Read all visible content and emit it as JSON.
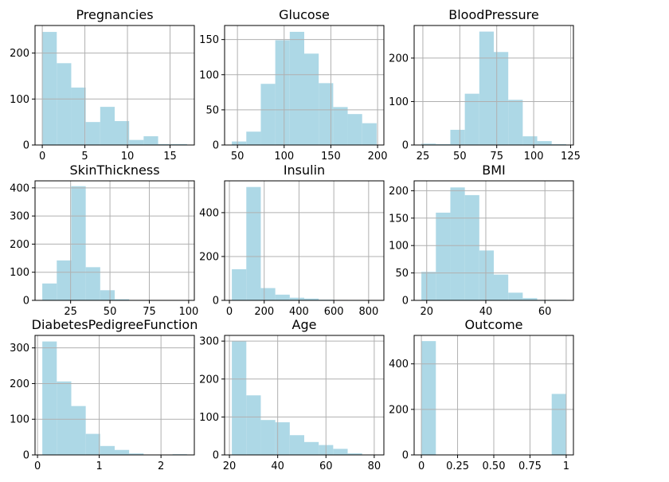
{
  "figure": {
    "bar_color": "#add8e6"
  },
  "chart_data": [
    {
      "type": "bar",
      "title": "Pregnancies",
      "bin_edges": [
        0,
        1.7,
        3.4,
        5.1,
        6.8,
        8.5,
        10.2,
        11.9,
        13.6,
        15.3,
        17
      ],
      "values": [
        246,
        178,
        125,
        50,
        83,
        52,
        11,
        19,
        2,
        2
      ],
      "xlim": [
        -0.85,
        17.85
      ],
      "ylim": [
        0,
        260
      ],
      "xticks": [
        0,
        5,
        10,
        15
      ],
      "yticks": [
        0,
        100,
        200
      ],
      "grid": true
    },
    {
      "type": "bar",
      "title": "Glucose",
      "bin_edges": [
        44,
        59.5,
        75,
        90.5,
        106,
        121.5,
        137,
        152.5,
        168,
        183.5,
        199
      ],
      "values": [
        5,
        19,
        87,
        149,
        161,
        130,
        88,
        54,
        44,
        31
      ],
      "xlim": [
        36.25,
        206.75
      ],
      "ylim": [
        0,
        170
      ],
      "xticks": [
        50,
        100,
        150,
        200
      ],
      "yticks": [
        0,
        50,
        100,
        150
      ],
      "grid": true
    },
    {
      "type": "bar",
      "title": "BloodPressure",
      "bin_edges": [
        24,
        33.8,
        43.6,
        53.4,
        63.2,
        73,
        82.8,
        92.6,
        102.4,
        112.2,
        122
      ],
      "values": [
        3,
        2,
        35,
        118,
        261,
        214,
        104,
        20,
        9,
        2
      ],
      "xlim": [
        19.1,
        126.9
      ],
      "ylim": [
        0,
        275
      ],
      "xticks": [
        25,
        50,
        75,
        100,
        125
      ],
      "yticks": [
        0,
        100,
        200
      ],
      "grid": true
    },
    {
      "type": "bar",
      "title": "SkinThickness",
      "bin_edges": [
        7,
        16.2,
        25.4,
        34.6,
        43.8,
        53,
        62.2,
        71.4,
        80.6,
        89.8,
        99
      ],
      "values": [
        60,
        142,
        406,
        118,
        36,
        4,
        1,
        0,
        0,
        1
      ],
      "xlim": [
        2.4,
        103.6
      ],
      "ylim": [
        0,
        425
      ],
      "xticks": [
        25,
        50,
        75,
        100
      ],
      "yticks": [
        0,
        100,
        200,
        300,
        400
      ],
      "grid": true
    },
    {
      "type": "bar",
      "title": "Insulin",
      "bin_edges": [
        14,
        97.2,
        180.4,
        263.6,
        346.8,
        430,
        513.2,
        596.4,
        679.6,
        762.8,
        846
      ],
      "values": [
        142,
        517,
        56,
        26,
        12,
        8,
        3,
        2,
        1,
        1
      ],
      "xlim": [
        -27.6,
        887.6
      ],
      "ylim": [
        0,
        545
      ],
      "xticks": [
        0,
        200,
        400,
        600,
        800
      ],
      "yticks": [
        0,
        200,
        400
      ],
      "grid": true
    },
    {
      "type": "bar",
      "title": "BMI",
      "bin_edges": [
        18.2,
        23.1,
        28.0,
        32.9,
        37.8,
        42.7,
        47.6,
        52.5,
        57.4,
        62.3,
        67.2
      ],
      "values": [
        52,
        160,
        206,
        192,
        91,
        47,
        14,
        4,
        1,
        1
      ],
      "xlim": [
        15.75,
        69.65
      ],
      "ylim": [
        0,
        218
      ],
      "xticks": [
        20,
        40,
        60
      ],
      "yticks": [
        0,
        50,
        100,
        150,
        200
      ],
      "grid": true
    },
    {
      "type": "bar",
      "title": "DiabetesPedigreeFunction",
      "bin_edges": [
        0.078,
        0.312,
        0.547,
        0.781,
        1.015,
        1.25,
        1.484,
        1.718,
        1.953,
        2.187,
        2.421
      ],
      "values": [
        318,
        206,
        137,
        59,
        25,
        14,
        4,
        1,
        1,
        2
      ],
      "xlim": [
        -0.04,
        2.54
      ],
      "ylim": [
        0,
        335
      ],
      "xticks": [
        0,
        1,
        2
      ],
      "yticks": [
        0,
        100,
        200,
        300
      ],
      "grid": true
    },
    {
      "type": "bar",
      "title": "Age",
      "bin_edges": [
        21,
        27,
        33,
        39,
        45,
        51,
        57,
        63,
        69,
        75,
        81
      ],
      "values": [
        300,
        157,
        92,
        86,
        52,
        34,
        26,
        16,
        4,
        1
      ],
      "xlim": [
        18,
        84
      ],
      "ylim": [
        0,
        315
      ],
      "xticks": [
        20,
        40,
        60,
        80
      ],
      "yticks": [
        0,
        100,
        200,
        300
      ],
      "grid": true
    },
    {
      "type": "bar",
      "title": "Outcome",
      "bin_edges": [
        0,
        0.1,
        0.2,
        0.3,
        0.4,
        0.5,
        0.6,
        0.7,
        0.8,
        0.9,
        1.0
      ],
      "values": [
        500,
        0,
        0,
        0,
        0,
        0,
        0,
        0,
        0,
        268
      ],
      "xlim": [
        -0.05,
        1.05
      ],
      "ylim": [
        0,
        525
      ],
      "xticks": [
        0,
        0.25,
        0.5,
        0.75,
        1.0
      ],
      "yticks": [
        0,
        200,
        400
      ],
      "grid": true
    }
  ]
}
